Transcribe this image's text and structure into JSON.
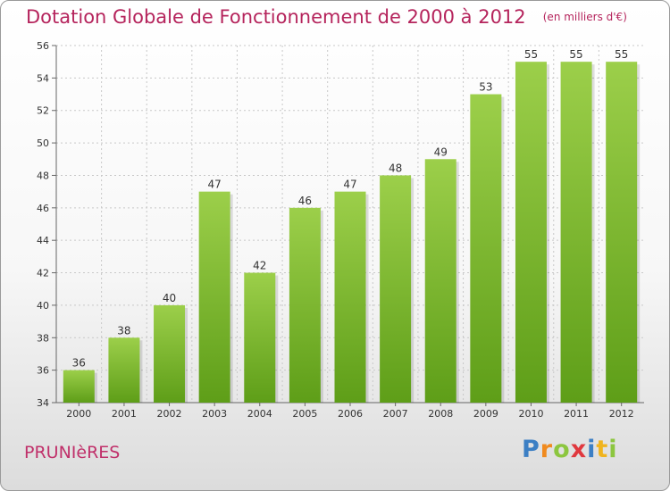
{
  "chart_data": {
    "type": "bar",
    "title": "Dotation Globale de Fonctionnement de 2000 à 2012",
    "subtitle": "(en milliers d'€)",
    "categories": [
      "2000",
      "2001",
      "2002",
      "2003",
      "2004",
      "2005",
      "2006",
      "2007",
      "2008",
      "2009",
      "2010",
      "2011",
      "2012"
    ],
    "values": [
      36,
      38,
      40,
      47,
      42,
      46,
      47,
      48,
      49,
      53,
      55,
      55,
      55
    ],
    "ylim": [
      34,
      56
    ],
    "yticks": [
      34,
      36,
      38,
      40,
      42,
      44,
      46,
      48,
      50,
      52,
      54,
      56
    ],
    "grid": true,
    "bar_color_top": "#9ccf4a",
    "bar_color_bottom": "#5e9e18"
  },
  "footer": {
    "commune": "PRUNIèRES",
    "logo": "Proxiti"
  },
  "colors": {
    "title": "#b5245c",
    "commune": "#c0306a"
  }
}
